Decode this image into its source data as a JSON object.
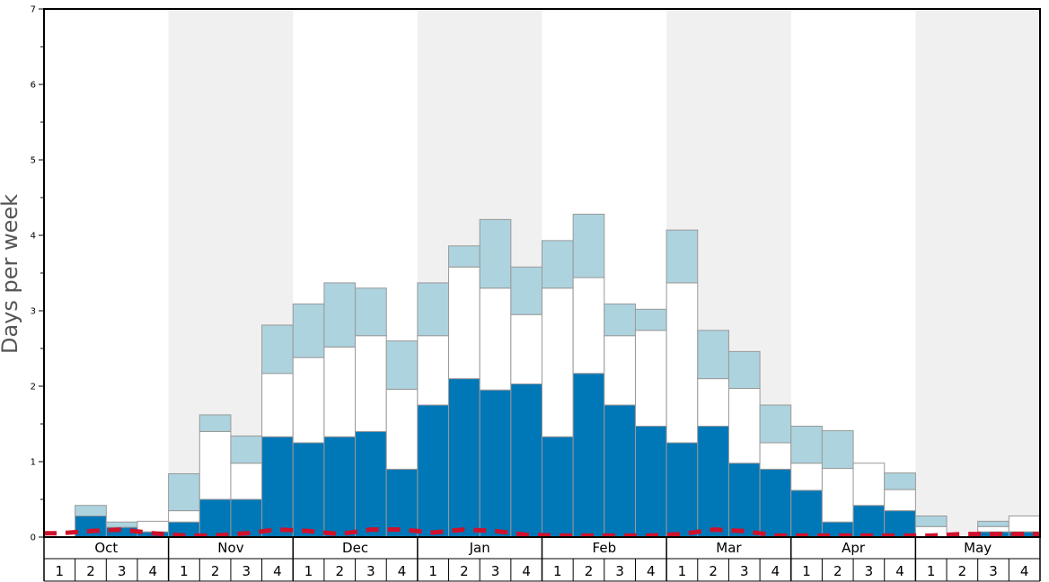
{
  "chart_data": {
    "type": "bar",
    "stacked": true,
    "ylabel": "Days per week",
    "ylim": [
      0,
      7
    ],
    "yticks": [
      0,
      1,
      2,
      3,
      4,
      5,
      6,
      7
    ],
    "months": [
      "Oct",
      "Nov",
      "Dec",
      "Jan",
      "Feb",
      "Mar",
      "Apr",
      "May"
    ],
    "weeks": [
      "1",
      "2",
      "3",
      "4"
    ],
    "colors": {
      "dark": "#0077b7",
      "white": "#ffffff",
      "light": "#add3df",
      "line": "#d0112b",
      "band": "#f0f0f0",
      "barStroke": "#999999"
    },
    "series": [
      {
        "values": [
          0.0,
          0.28,
          0.13,
          0.07,
          0.2,
          0.5,
          0.5,
          1.33,
          1.25,
          1.33,
          1.4,
          0.9,
          1.75,
          2.1,
          1.95,
          2.03,
          1.33,
          2.17,
          1.75,
          1.47,
          1.25,
          1.47,
          0.98,
          0.9,
          0.62,
          0.2,
          0.42,
          0.35,
          0.0,
          0.0,
          0.07,
          0.07
        ]
      },
      {
        "values": [
          0.0,
          0.0,
          0.0,
          0.14,
          0.15,
          0.9,
          0.48,
          0.84,
          1.13,
          1.19,
          1.27,
          1.06,
          0.92,
          1.48,
          1.35,
          0.92,
          1.97,
          1.27,
          0.92,
          1.27,
          2.12,
          0.63,
          0.99,
          0.35,
          0.36,
          0.71,
          0.56,
          0.28,
          0.14,
          0.0,
          0.07,
          0.21
        ]
      },
      {
        "values": [
          0.0,
          0.14,
          0.07,
          0.0,
          0.49,
          0.22,
          0.36,
          0.64,
          0.71,
          0.85,
          0.63,
          0.64,
          0.7,
          0.28,
          0.91,
          0.63,
          0.63,
          0.84,
          0.42,
          0.28,
          0.7,
          0.64,
          0.49,
          0.5,
          0.49,
          0.5,
          0.0,
          0.22,
          0.14,
          0.0,
          0.07,
          0.0
        ]
      },
      {
        "values": [
          0.05,
          0.08,
          0.1,
          0.05,
          0.02,
          0.02,
          0.05,
          0.1,
          0.08,
          0.04,
          0.1,
          0.1,
          0.06,
          0.1,
          0.08,
          0.03,
          0.02,
          0.02,
          0.02,
          0.02,
          0.04,
          0.1,
          0.08,
          0.02,
          0.02,
          0.02,
          0.02,
          0.02,
          0.02,
          0.04,
          0.04,
          0.04
        ]
      }
    ]
  }
}
